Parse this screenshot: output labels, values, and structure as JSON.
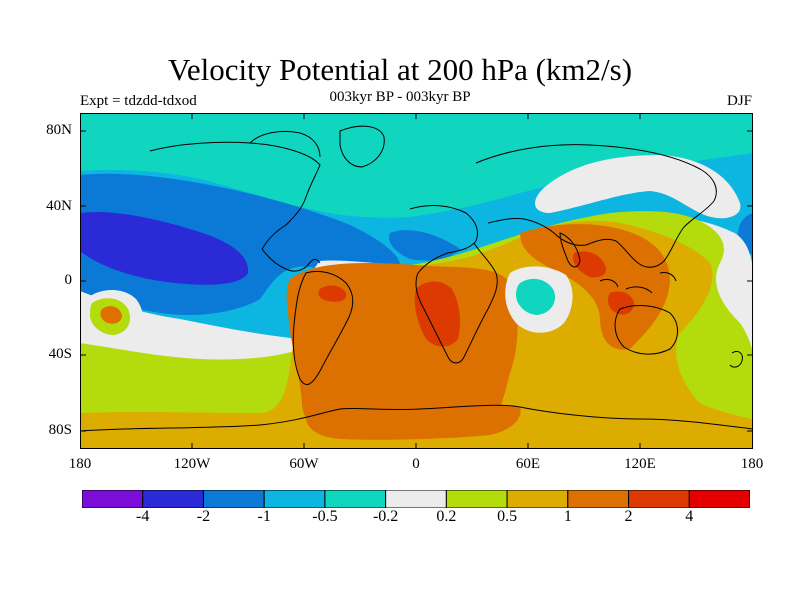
{
  "title": "Velocity Potential at 200 hPa (km2/s)",
  "subtitle": "003kyr BP - 003kyr BP",
  "experiment_label": "Expt = tdzdd-tdxod",
  "season": "DJF",
  "lat_axis": [
    "80N",
    "40N",
    "0",
    "40S",
    "80S"
  ],
  "lon_axis": [
    "180",
    "120W",
    "60W",
    "0",
    "60E",
    "120E",
    "180"
  ],
  "colorbar": {
    "colors": [
      "#7a0ed8",
      "#2a2ad6",
      "#0a7ad6",
      "#0cb6e0",
      "#10d6c0",
      "#ececec",
      "#b4dc0c",
      "#dcac00",
      "#dc7000",
      "#dc3a00",
      "#e40000"
    ],
    "labels": [
      "-4",
      "-2",
      "-1",
      "-0.5",
      "-0.2",
      "0.2",
      "0.5",
      "1",
      "2",
      "4"
    ]
  }
}
